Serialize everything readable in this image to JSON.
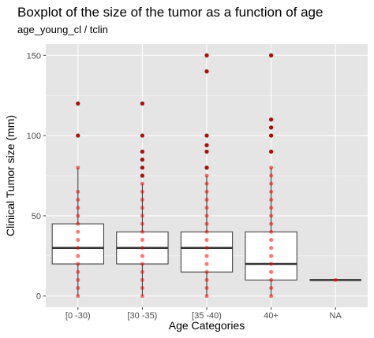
{
  "chart_data": {
    "type": "boxplot",
    "title": "Boxplot of the size of the tumor as a function of age",
    "subtitle": "age_young_cl / tclin",
    "xlabel": "Age Categories",
    "ylabel": "Clinical Tumor size (mm)",
    "ylim": [
      -7,
      157
    ],
    "yticks": [
      0,
      50,
      100,
      150
    ],
    "yticks_labels": [
      "0",
      "50",
      "100",
      "150"
    ],
    "grid": true,
    "colors": {
      "panel": "#e5e5e5",
      "grid": "#ffffff",
      "box_fill": "#ffffff",
      "box_line": "#333333",
      "point": "#ff0000",
      "outlier": "#5a1a1a"
    },
    "categories": [
      "[0 -30)",
      "[30 -35)",
      "[35 -40)",
      "40+",
      "NA"
    ],
    "boxes": [
      {
        "category": "[0 -30)",
        "whisker_low": 0,
        "q1": 20,
        "median": 30,
        "q3": 45,
        "whisker_high": 80,
        "outliers": [
          100,
          120
        ]
      },
      {
        "category": "[30 -35)",
        "whisker_low": 0,
        "q1": 20,
        "median": 30,
        "q3": 40,
        "whisker_high": 70,
        "outliers": [
          75,
          80,
          85,
          90,
          100,
          120
        ]
      },
      {
        "category": "[35 -40)",
        "whisker_low": 0,
        "q1": 15,
        "median": 30,
        "q3": 40,
        "whisker_high": 75,
        "outliers": [
          80,
          90,
          94,
          100,
          140,
          150
        ]
      },
      {
        "category": "40+",
        "whisker_low": 0,
        "q1": 10,
        "median": 20,
        "q3": 40,
        "whisker_high": 80,
        "outliers": [
          90,
          100,
          105,
          110,
          150
        ]
      },
      {
        "category": "NA",
        "whisker_low": 10,
        "q1": 10,
        "median": 10,
        "q3": 10,
        "whisker_high": 10,
        "outliers": []
      }
    ],
    "points": [
      {
        "category": "[0 -30)",
        "values": [
          0,
          5,
          10,
          15,
          20,
          25,
          30,
          35,
          40,
          45,
          50,
          55,
          60,
          65,
          80,
          100,
          120
        ]
      },
      {
        "category": "[30 -35)",
        "values": [
          0,
          5,
          10,
          15,
          20,
          25,
          30,
          35,
          40,
          45,
          50,
          55,
          60,
          65,
          70,
          75,
          80,
          85,
          90,
          100,
          120
        ]
      },
      {
        "category": "[35 -40)",
        "values": [
          0,
          5,
          10,
          15,
          20,
          25,
          30,
          35,
          40,
          45,
          50,
          55,
          60,
          65,
          70,
          75,
          80,
          90,
          94,
          100,
          140,
          150
        ]
      },
      {
        "category": "40+",
        "values": [
          0,
          5,
          10,
          15,
          20,
          25,
          30,
          35,
          40,
          45,
          50,
          55,
          60,
          65,
          70,
          75,
          80,
          90,
          100,
          105,
          110,
          150
        ]
      },
      {
        "category": "NA",
        "values": [
          10
        ]
      }
    ]
  }
}
